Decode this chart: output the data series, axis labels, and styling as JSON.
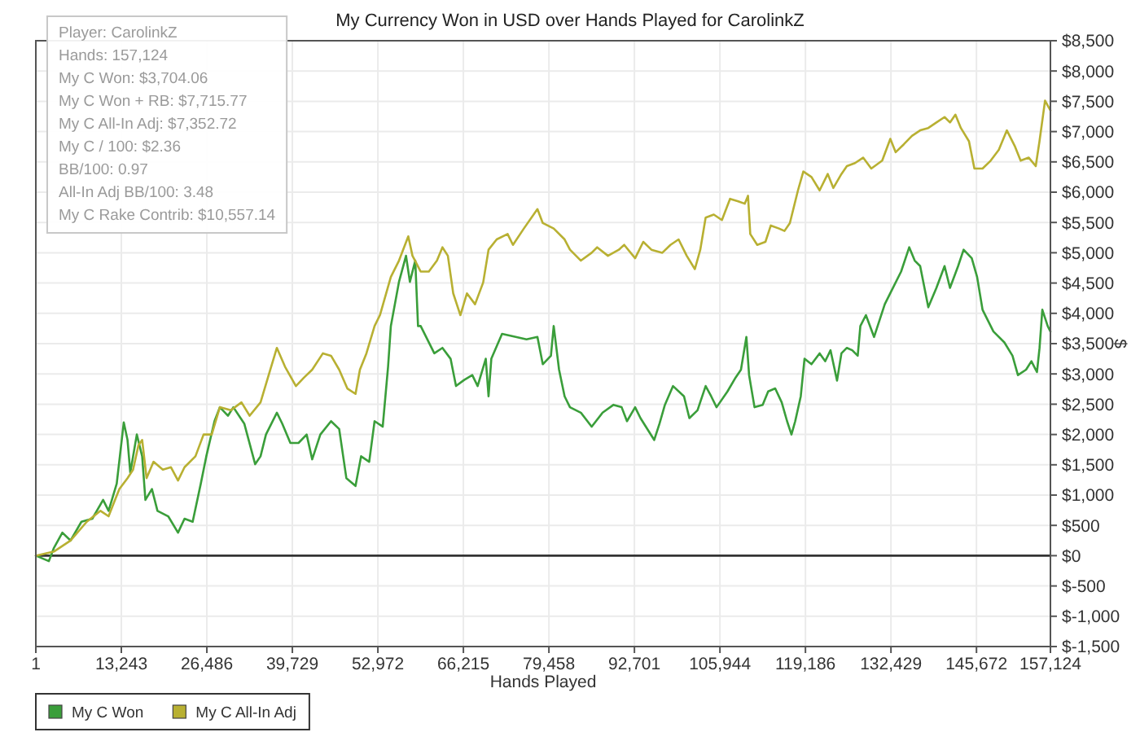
{
  "chart_data": {
    "type": "line",
    "title": "My Currency Won in USD over Hands Played for CarolinkZ",
    "xlabel": "Hands Played",
    "ylabel": "$",
    "annotations": [
      "Player: CarolinkZ",
      "Hands: 157,124",
      "My C Won: $3,704.06",
      "My C Won + RB: $7,715.77",
      "My C All-In Adj: $7,352.72",
      "My C / 100: $2.36",
      "BB/100: 0.97",
      "All-In Adj BB/100: 3.48",
      "My C Rake Contrib: $10,557.14"
    ],
    "xlim": [
      1,
      157124
    ],
    "xticks": [
      1,
      {
        "value": 13243,
        "label": "13,243"
      },
      {
        "value": 26486,
        "label": "26,486"
      },
      {
        "value": 39729,
        "label": "39,729"
      },
      {
        "value": 52972,
        "label": "52,972"
      },
      {
        "value": 66215,
        "label": "66,215"
      },
      {
        "value": 79458,
        "label": "79,458"
      },
      {
        "value": 92701,
        "label": "92,701"
      },
      {
        "value": 105944,
        "label": "105,944"
      },
      {
        "value": 119186,
        "label": "119,186"
      },
      {
        "value": 132429,
        "label": "132,429"
      },
      {
        "value": 145672,
        "label": "145,672"
      },
      {
        "value": 157124,
        "label": "157,124"
      }
    ],
    "ylim": [
      -1500,
      8500
    ],
    "yticks": [
      {
        "value": 8500,
        "label": "$8,500"
      },
      {
        "value": 8000,
        "label": "$8,000"
      },
      {
        "value": 7500,
        "label": "$7,500"
      },
      {
        "value": 7000,
        "label": "$7,000"
      },
      {
        "value": 6500,
        "label": "$6,500"
      },
      {
        "value": 6000,
        "label": "$6,000"
      },
      {
        "value": 5500,
        "label": "$5,500"
      },
      {
        "value": 5000,
        "label": "$5,000"
      },
      {
        "value": 4500,
        "label": "$4,500"
      },
      {
        "value": 4000,
        "label": "$4,000"
      },
      {
        "value": 3500,
        "label": "$3,500"
      },
      {
        "value": 3000,
        "label": "$3,000"
      },
      {
        "value": 2500,
        "label": "$2,500"
      },
      {
        "value": 2000,
        "label": "$2,000"
      },
      {
        "value": 1500,
        "label": "$1,500"
      },
      {
        "value": 1000,
        "label": "$1,000"
      },
      {
        "value": 500,
        "label": "$500"
      },
      {
        "value": 0,
        "label": "$0"
      },
      {
        "value": -500,
        "label": "$-500"
      },
      {
        "value": -1000,
        "label": "$-1,000"
      },
      {
        "value": -1500,
        "label": "$-1,500"
      }
    ],
    "grid": true,
    "legend": "bottom left",
    "ref_lines": [
      {
        "axis": "y",
        "value": 0,
        "color": "#333333"
      }
    ],
    "series": [
      {
        "name": "My C Won",
        "color": "#3a9e3a",
        "x": [
          1,
          2020,
          2770,
          4110,
          5370,
          7060,
          8750,
          10420,
          11270,
          12530,
          13620,
          14200,
          14630,
          15640,
          16470,
          16970,
          17980,
          18840,
          20500,
          22020,
          23030,
          24290,
          25550,
          26400,
          27670,
          28500,
          29760,
          30590,
          32280,
          33970,
          34800,
          35640,
          37330,
          38160,
          39420,
          40680,
          41940,
          42800,
          44060,
          45720,
          46980,
          48090,
          49510,
          50370,
          51630,
          52460,
          53720,
          54550,
          54980,
          56240,
          57330,
          57930,
          58760,
          59190,
          59600,
          61710,
          62970,
          64230,
          65070,
          66330,
          67590,
          68420,
          69680,
          70110,
          70540,
          72200,
          74320,
          75990,
          77680,
          78510,
          79770,
          80200,
          81030,
          81890,
          82720,
          84410,
          86080,
          87770,
          89460,
          90720,
          91550,
          92810,
          93640,
          95760,
          96590,
          97420,
          98680,
          100380,
          101210,
          102470,
          103730,
          104590,
          105420,
          107110,
          108370,
          109200,
          110040,
          110460,
          111300,
          112560,
          113410,
          114500,
          115510,
          116340,
          117020,
          117600,
          118460,
          119040,
          120120,
          121380,
          122240,
          123070,
          124080,
          124760,
          125600,
          126430,
          127280,
          127690,
          128550,
          129810,
          131470,
          132730,
          134000,
          135260,
          136110,
          136950,
          138210,
          139470,
          140730,
          141570,
          142830,
          143680,
          144940,
          145770,
          146610,
          148300,
          149990,
          151250,
          152090,
          153350,
          154180,
          155040,
          155440,
          155870,
          156700,
          157124
        ],
        "values": [
          0,
          -90,
          120,
          380,
          250,
          560,
          610,
          920,
          740,
          1190,
          2200,
          1910,
          1370,
          2000,
          1640,
          920,
          1100,
          740,
          650,
          380,
          610,
          560,
          1190,
          1640,
          2220,
          2450,
          2310,
          2450,
          2180,
          1510,
          1640,
          2000,
          2360,
          2180,
          1860,
          1860,
          2000,
          1590,
          2000,
          2220,
          2090,
          1280,
          1150,
          1640,
          1550,
          2220,
          2130,
          3120,
          3790,
          4520,
          4950,
          4520,
          4870,
          3790,
          3790,
          3340,
          3430,
          3250,
          2800,
          2900,
          2980,
          2800,
          3250,
          2630,
          3250,
          3660,
          3610,
          3570,
          3610,
          3160,
          3300,
          3790,
          3070,
          2630,
          2450,
          2360,
          2130,
          2360,
          2490,
          2450,
          2220,
          2450,
          2270,
          1910,
          2180,
          2490,
          2800,
          2630,
          2270,
          2400,
          2800,
          2630,
          2450,
          2710,
          2940,
          3070,
          3610,
          2980,
          2450,
          2490,
          2710,
          2760,
          2530,
          2220,
          2000,
          2220,
          2630,
          3250,
          3160,
          3340,
          3210,
          3390,
          2890,
          3340,
          3430,
          3390,
          3300,
          3790,
          3970,
          3610,
          4150,
          4420,
          4690,
          5090,
          4870,
          4780,
          4100,
          4420,
          4780,
          4420,
          4780,
          5050,
          4910,
          4600,
          4060,
          3700,
          3520,
          3300,
          2980,
          3070,
          3210,
          3030,
          3430,
          4060,
          3790,
          3700
        ]
      },
      {
        "name": "My C All-In Adj",
        "color": "#b8b032",
        "x": [
          1,
          2850,
          5370,
          7890,
          10010,
          11270,
          12110,
          12940,
          14200,
          15060,
          15890,
          16470,
          17150,
          18230,
          19670,
          20930,
          22020,
          23030,
          24720,
          25980,
          27240,
          28500,
          30190,
          31850,
          33110,
          34800,
          36060,
          37330,
          38590,
          40280,
          41540,
          42800,
          44460,
          45720,
          46980,
          48240,
          49510,
          50190,
          51200,
          52460,
          53290,
          54980,
          56240,
          57680,
          58330,
          59590,
          60860,
          62120,
          62970,
          63810,
          64640,
          65750,
          66760,
          68020,
          69280,
          70110,
          71370,
          73060,
          73890,
          75580,
          77680,
          78510,
          80200,
          81890,
          82720,
          84410,
          86080,
          86930,
          88600,
          90290,
          91120,
          92810,
          94070,
          95330,
          97020,
          98280,
          99540,
          100800,
          102060,
          102900,
          103730,
          104990,
          106250,
          107510,
          108770,
          109780,
          110290,
          110640,
          111720,
          112990,
          113820,
          115080,
          115940,
          116770,
          118030,
          118860,
          120120,
          121380,
          122640,
          123500,
          124760,
          125600,
          126860,
          128120,
          129380,
          131070,
          132330,
          133160,
          134420,
          135680,
          136950,
          138210,
          139470,
          140730,
          141570,
          142410,
          143250,
          144510,
          145350,
          146610,
          147870,
          149130,
          150380,
          151650,
          152510,
          153770,
          154850,
          155430,
          156290,
          157124
        ],
        "values": [
          0,
          70,
          250,
          560,
          740,
          650,
          880,
          1100,
          1280,
          1420,
          1820,
          1910,
          1280,
          1550,
          1420,
          1460,
          1240,
          1460,
          1640,
          2000,
          2000,
          2450,
          2400,
          2530,
          2310,
          2530,
          2980,
          3430,
          3120,
          2800,
          2940,
          3070,
          3340,
          3300,
          3070,
          2760,
          2670,
          3070,
          3340,
          3790,
          3970,
          4600,
          4870,
          5270,
          4950,
          4690,
          4690,
          4870,
          5090,
          4950,
          4330,
          3970,
          4330,
          4150,
          4510,
          5050,
          5220,
          5310,
          5130,
          5400,
          5720,
          5490,
          5400,
          5220,
          5050,
          4870,
          5000,
          5090,
          4950,
          5050,
          5130,
          4910,
          5180,
          5050,
          5000,
          5130,
          5220,
          4950,
          4730,
          5050,
          5580,
          5630,
          5540,
          5890,
          5850,
          5810,
          5940,
          5310,
          5130,
          5180,
          5450,
          5400,
          5360,
          5490,
          6030,
          6340,
          6250,
          6030,
          6300,
          6070,
          6300,
          6430,
          6480,
          6570,
          6390,
          6520,
          6880,
          6660,
          6790,
          6930,
          7020,
          7060,
          7150,
          7240,
          7150,
          7280,
          7060,
          6840,
          6390,
          6390,
          6520,
          6700,
          7020,
          6750,
          6520,
          6570,
          6430,
          6840,
          7510,
          7350
        ]
      }
    ]
  }
}
